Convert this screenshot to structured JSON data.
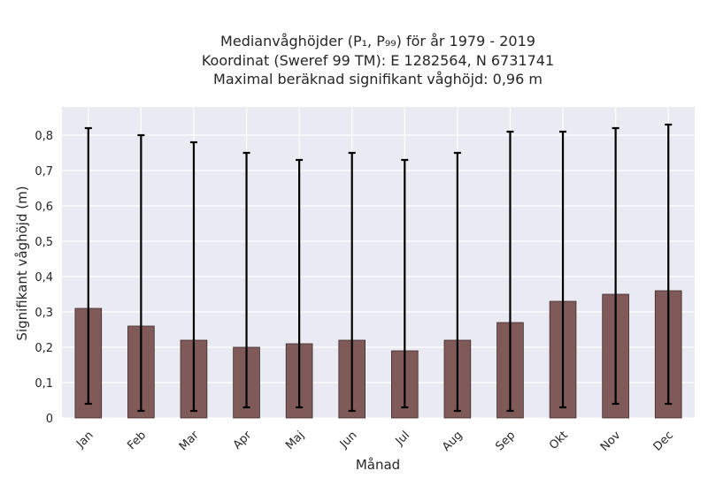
{
  "chart_data": {
    "type": "bar",
    "title_lines": [
      "Medianvåghöjder (P₁, P₉₉) för år 1979 - 2019",
      "Koordinat (Sweref 99 TM): E 1282564, N 6731741",
      "Maximal beräknad signifikant våghöjd: 0,96 m"
    ],
    "xlabel": "Månad",
    "ylabel": "Signifikant våghöjd (m)",
    "categories": [
      "Jan",
      "Feb",
      "Mar",
      "Apr",
      "Maj",
      "Jun",
      "Jul",
      "Aug",
      "Sep",
      "Okt",
      "Nov",
      "Dec"
    ],
    "values": [
      0.31,
      0.26,
      0.22,
      0.2,
      0.21,
      0.22,
      0.19,
      0.22,
      0.27,
      0.33,
      0.35,
      0.36
    ],
    "p1": [
      0.04,
      0.02,
      0.02,
      0.03,
      0.03,
      0.02,
      0.03,
      0.02,
      0.02,
      0.03,
      0.04,
      0.04
    ],
    "p99": [
      0.82,
      0.8,
      0.78,
      0.75,
      0.73,
      0.75,
      0.73,
      0.75,
      0.81,
      0.81,
      0.82,
      0.83
    ],
    "ylim": [
      0,
      0.88
    ],
    "yticks": [
      0,
      0.1,
      0.2,
      0.3,
      0.4,
      0.5,
      0.6,
      0.7,
      0.8
    ],
    "ytick_labels": [
      "0",
      "0,1",
      "0,2",
      "0,3",
      "0,4",
      "0,5",
      "0,6",
      "0,7",
      "0,8"
    ],
    "grid": true,
    "bar_color": "#7f5a59",
    "bar_edge_color": "#3d2b2b",
    "errorbar_color": "#000000",
    "plot_background": "#eaeaf2",
    "grid_color": "#ffffff"
  }
}
